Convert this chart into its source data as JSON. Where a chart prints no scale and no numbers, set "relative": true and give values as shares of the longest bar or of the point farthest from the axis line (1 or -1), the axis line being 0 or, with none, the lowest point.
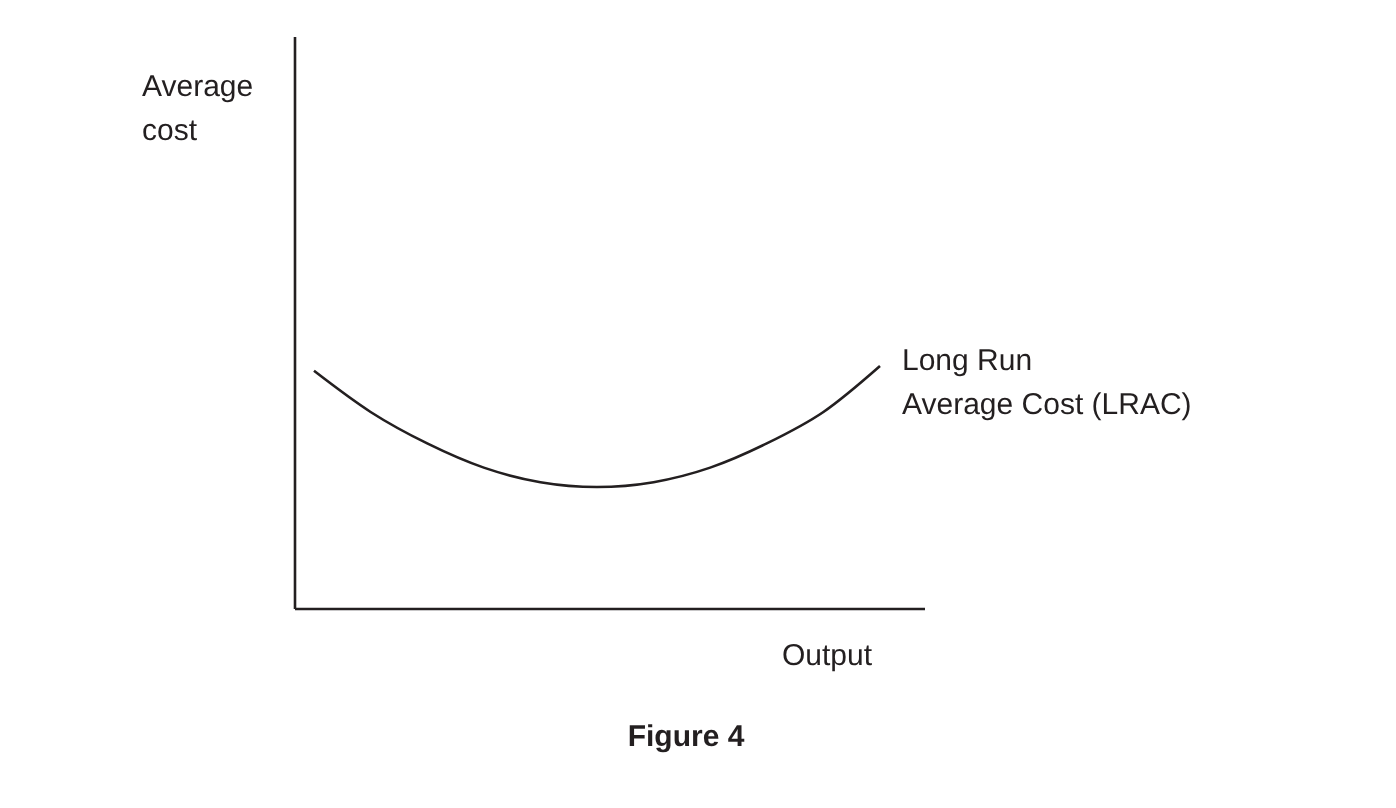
{
  "chart_data": {
    "type": "line",
    "relative": true,
    "xlabel": "Output",
    "categories": [
      null,
      null,
      null,
      null,
      null,
      null,
      null,
      null,
      null,
      null,
      null
    ],
    "series": [
      {
        "name": "Long Run Average Cost (LRAC)",
        "color": "#231f20",
        "values": [
          0.98,
          0.81,
          0.68,
          0.58,
          0.52,
          0.5,
          0.52,
          0.58,
          0.68,
          0.81,
          1.0
        ]
      }
    ],
    "annotations": [
      "Average cost",
      "Figure 4"
    ],
    "marker": "none",
    "line_style": "solid",
    "grid": false
  }
}
